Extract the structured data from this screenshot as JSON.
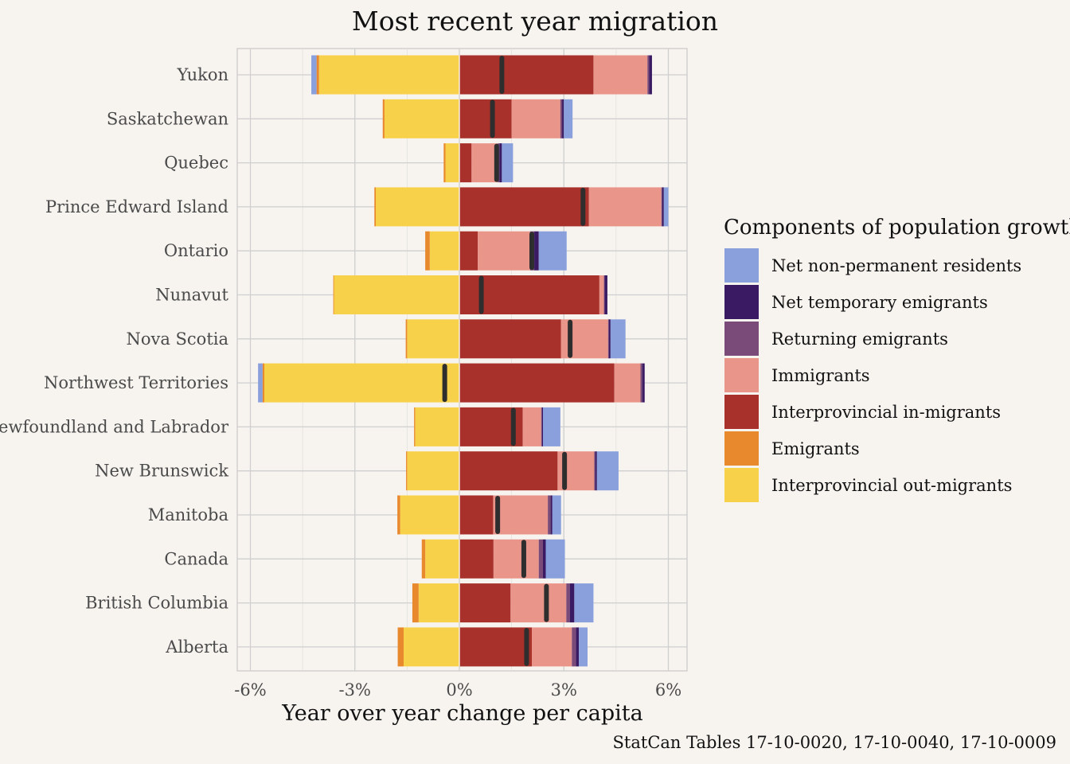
{
  "chart_data": {
    "type": "bar",
    "stacked": "diverging",
    "orientation": "horizontal",
    "title": "Most recent year migration",
    "xlabel": "Year over year change per capita",
    "ylabel": "",
    "caption": "StatCan Tables 17-10-0020, 17-10-0040, 17-10-0009",
    "xlim": [
      -6.4,
      6.5
    ],
    "xticks": [
      -6,
      -3,
      0,
      3,
      6
    ],
    "xtick_labels": [
      "-6%",
      "-3%",
      "0%",
      "3%",
      "6%"
    ],
    "grid": true,
    "legend": {
      "title": "Components of population growth",
      "placement": "right",
      "order": [
        "npr",
        "nte",
        "ret",
        "imm",
        "in",
        "emi",
        "out"
      ]
    },
    "series": [
      {
        "key": "npr",
        "name": "Net non-permanent residents",
        "color": "#8aa0dc"
      },
      {
        "key": "nte",
        "name": "Net temporary emigrants",
        "color": "#3a1a63"
      },
      {
        "key": "ret",
        "name": "Returning emigrants",
        "color": "#7a4a78"
      },
      {
        "key": "imm",
        "name": "Immigrants",
        "color": "#ea958a"
      },
      {
        "key": "in",
        "name": "Interprovincial in-migrants",
        "color": "#a8312b"
      },
      {
        "key": "emi",
        "name": "Emigrants",
        "color": "#e8892e"
      },
      {
        "key": "out",
        "name": "Interprovincial out-migrants",
        "color": "#f8d14b"
      }
    ],
    "positive_stack_order": [
      "in",
      "imm",
      "ret",
      "nte",
      "npr"
    ],
    "negative_stack_order": [
      "out",
      "emi",
      "npr"
    ],
    "net_marker": {
      "name": "Net",
      "color": "#2e2e2e"
    },
    "categories": [
      "Yukon",
      "Saskatchewan",
      "Quebec",
      "Prince Edward Island",
      "Ontario",
      "Nunavut",
      "Nova Scotia",
      "Northwest Territories",
      "Newfoundland and Labrador",
      "New Brunswick",
      "Manitoba",
      "Canada",
      "British Columbia",
      "Alberta"
    ],
    "rows": [
      {
        "in": 3.85,
        "imm": 1.55,
        "ret": 0.05,
        "nte": 0.08,
        "npr": 0,
        "out": -4.03,
        "emi": -0.07,
        "npr_neg": -0.15,
        "net": 1.22
      },
      {
        "in": 1.5,
        "imm": 1.4,
        "ret": 0.05,
        "nte": 0.05,
        "npr": 0.25,
        "out": -2.15,
        "emi": -0.05,
        "npr_neg": 0,
        "net": 0.95
      },
      {
        "in": 0.35,
        "imm": 0.75,
        "ret": 0.05,
        "nte": 0.07,
        "npr": 0.32,
        "out": -0.4,
        "emi": -0.05,
        "npr_neg": 0,
        "net": 1.07
      },
      {
        "in": 3.72,
        "imm": 2.08,
        "ret": 0.02,
        "nte": 0.05,
        "npr": 0.13,
        "out": -2.4,
        "emi": -0.04,
        "npr_neg": 0,
        "net": 3.55
      },
      {
        "in": 0.53,
        "imm": 1.5,
        "ret": 0.12,
        "nte": 0.13,
        "npr": 0.8,
        "out": -0.85,
        "emi": -0.13,
        "npr_neg": 0,
        "net": 2.08
      },
      {
        "in": 4.02,
        "imm": 0.13,
        "ret": 0.02,
        "nte": 0.08,
        "npr": 0,
        "out": -3.6,
        "emi": -0.02,
        "npr_neg": 0,
        "net": 0.63
      },
      {
        "in": 2.92,
        "imm": 1.35,
        "ret": 0.02,
        "nte": 0.05,
        "npr": 0.43,
        "out": -1.5,
        "emi": -0.04,
        "npr_neg": 0,
        "net": 3.18
      },
      {
        "in": 4.45,
        "imm": 0.75,
        "ret": 0.05,
        "nte": 0.07,
        "npr": 0,
        "out": -5.6,
        "emi": -0.05,
        "npr_neg": -0.13,
        "net": -0.42
      },
      {
        "in": 1.82,
        "imm": 0.53,
        "ret": 0.02,
        "nte": 0.03,
        "npr": 0.5,
        "out": -1.27,
        "emi": -0.03,
        "npr_neg": 0,
        "net": 1.55
      },
      {
        "in": 2.82,
        "imm": 1.05,
        "ret": 0.03,
        "nte": 0.05,
        "npr": 0.62,
        "out": -1.5,
        "emi": -0.03,
        "npr_neg": 0,
        "net": 3.02
      },
      {
        "in": 0.97,
        "imm": 1.57,
        "ret": 0.08,
        "nte": 0.05,
        "npr": 0.25,
        "out": -1.7,
        "emi": -0.08,
        "npr_neg": 0,
        "net": 1.1
      },
      {
        "in": 0.98,
        "imm": 1.3,
        "ret": 0.12,
        "nte": 0.08,
        "npr": 0.55,
        "out": -0.98,
        "emi": -0.1,
        "npr_neg": 0,
        "net": 1.85
      },
      {
        "in": 1.47,
        "imm": 1.6,
        "ret": 0.1,
        "nte": 0.13,
        "npr": 0.55,
        "out": -1.17,
        "emi": -0.18,
        "npr_neg": 0,
        "net": 2.5
      },
      {
        "in": 2.08,
        "imm": 1.15,
        "ret": 0.12,
        "nte": 0.08,
        "npr": 0.25,
        "out": -1.6,
        "emi": -0.17,
        "npr_neg": 0,
        "net": 1.93
      }
    ]
  }
}
